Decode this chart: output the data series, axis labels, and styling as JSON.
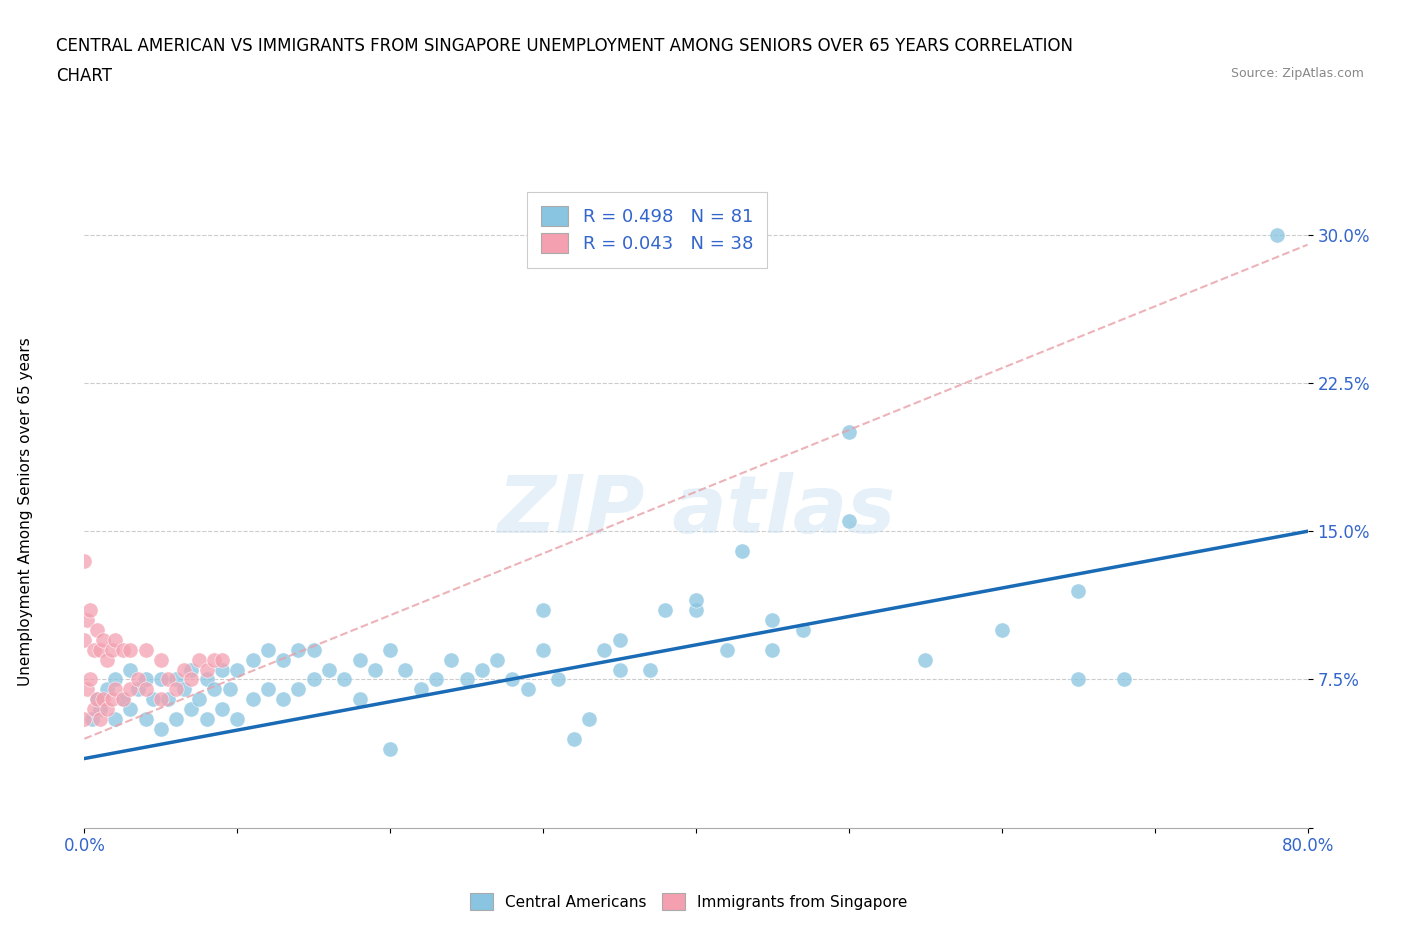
{
  "title_line1": "CENTRAL AMERICAN VS IMMIGRANTS FROM SINGAPORE UNEMPLOYMENT AMONG SENIORS OVER 65 YEARS CORRELATION",
  "title_line2": "CHART",
  "source_text": "Source: ZipAtlas.com",
  "ylabel": "Unemployment Among Seniors over 65 years",
  "x_min": 0.0,
  "x_max": 0.8,
  "y_min": 0.0,
  "y_max": 0.32,
  "x_ticks": [
    0.0,
    0.1,
    0.2,
    0.3,
    0.4,
    0.5,
    0.6,
    0.7,
    0.8
  ],
  "x_tick_labels": [
    "0.0%",
    "",
    "",
    "",
    "",
    "",
    "",
    "",
    "80.0%"
  ],
  "y_ticks": [
    0.0,
    0.075,
    0.15,
    0.225,
    0.3
  ],
  "y_tick_labels": [
    "",
    "7.5%",
    "15.0%",
    "22.5%",
    "30.0%"
  ],
  "blue_color": "#89C4E1",
  "pink_color": "#F4A0B0",
  "trendline_blue_color": "#1A6BB5",
  "trendline_pink_color": "#E8A0A8",
  "r_blue": 0.498,
  "n_blue": 81,
  "r_pink": 0.043,
  "n_pink": 38,
  "legend_label_blue": "Central Americans",
  "legend_label_pink": "Immigrants from Singapore",
  "blue_points_x": [
    0.005,
    0.008,
    0.01,
    0.015,
    0.02,
    0.02,
    0.025,
    0.03,
    0.03,
    0.035,
    0.04,
    0.04,
    0.045,
    0.05,
    0.05,
    0.055,
    0.06,
    0.06,
    0.065,
    0.07,
    0.07,
    0.075,
    0.08,
    0.08,
    0.085,
    0.09,
    0.09,
    0.095,
    0.1,
    0.1,
    0.11,
    0.11,
    0.12,
    0.12,
    0.13,
    0.13,
    0.14,
    0.14,
    0.15,
    0.15,
    0.16,
    0.17,
    0.18,
    0.18,
    0.19,
    0.2,
    0.2,
    0.21,
    0.22,
    0.23,
    0.24,
    0.25,
    0.26,
    0.27,
    0.28,
    0.29,
    0.3,
    0.31,
    0.32,
    0.33,
    0.34,
    0.35,
    0.37,
    0.38,
    0.4,
    0.42,
    0.43,
    0.45,
    0.47,
    0.5,
    0.55,
    0.6,
    0.65,
    0.65,
    0.68,
    0.5,
    0.3,
    0.35,
    0.4,
    0.45,
    0.78
  ],
  "blue_points_y": [
    0.055,
    0.065,
    0.06,
    0.07,
    0.055,
    0.075,
    0.065,
    0.06,
    0.08,
    0.07,
    0.055,
    0.075,
    0.065,
    0.05,
    0.075,
    0.065,
    0.055,
    0.075,
    0.07,
    0.06,
    0.08,
    0.065,
    0.055,
    0.075,
    0.07,
    0.06,
    0.08,
    0.07,
    0.055,
    0.08,
    0.065,
    0.085,
    0.07,
    0.09,
    0.065,
    0.085,
    0.07,
    0.09,
    0.075,
    0.09,
    0.08,
    0.075,
    0.065,
    0.085,
    0.08,
    0.04,
    0.09,
    0.08,
    0.07,
    0.075,
    0.085,
    0.075,
    0.08,
    0.085,
    0.075,
    0.07,
    0.09,
    0.075,
    0.045,
    0.055,
    0.09,
    0.08,
    0.08,
    0.11,
    0.11,
    0.09,
    0.14,
    0.09,
    0.1,
    0.2,
    0.085,
    0.1,
    0.075,
    0.12,
    0.075,
    0.155,
    0.11,
    0.095,
    0.115,
    0.105,
    0.3
  ],
  "pink_points_x": [
    0.0,
    0.0,
    0.0,
    0.002,
    0.002,
    0.004,
    0.004,
    0.006,
    0.006,
    0.008,
    0.008,
    0.01,
    0.01,
    0.012,
    0.012,
    0.015,
    0.015,
    0.018,
    0.018,
    0.02,
    0.02,
    0.025,
    0.025,
    0.03,
    0.03,
    0.035,
    0.04,
    0.04,
    0.05,
    0.05,
    0.055,
    0.06,
    0.065,
    0.07,
    0.075,
    0.08,
    0.085,
    0.09
  ],
  "pink_points_y": [
    0.055,
    0.095,
    0.135,
    0.07,
    0.105,
    0.075,
    0.11,
    0.06,
    0.09,
    0.065,
    0.1,
    0.055,
    0.09,
    0.065,
    0.095,
    0.06,
    0.085,
    0.065,
    0.09,
    0.07,
    0.095,
    0.065,
    0.09,
    0.07,
    0.09,
    0.075,
    0.07,
    0.09,
    0.065,
    0.085,
    0.075,
    0.07,
    0.08,
    0.075,
    0.085,
    0.08,
    0.085,
    0.085
  ],
  "pink_trendline_x0": 0.0,
  "pink_trendline_y0": 0.045,
  "pink_trendline_x1": 0.8,
  "pink_trendline_y1": 0.295,
  "blue_trendline_x0": 0.0,
  "blue_trendline_y0": 0.035,
  "blue_trendline_x1": 0.8,
  "blue_trendline_y1": 0.15
}
